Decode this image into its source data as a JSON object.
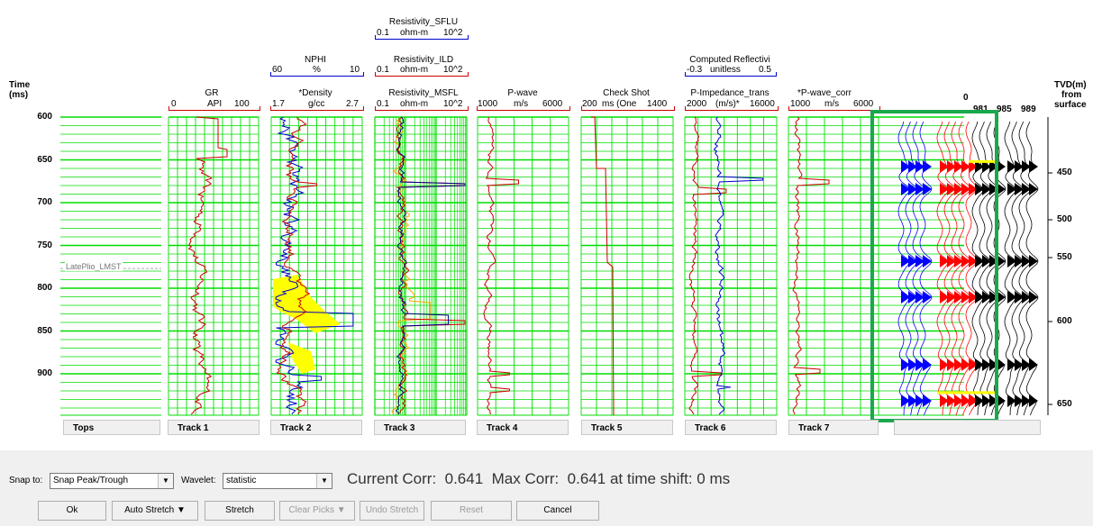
{
  "axis": {
    "time_title": "Time",
    "time_unit": "(ms)",
    "time_ticks": [
      "600",
      "650",
      "700",
      "750",
      "800",
      "850",
      "900"
    ],
    "tvd_title": "TVD(m)",
    "tvd_from": "from",
    "tvd_surface": "surface",
    "tvd_ticks": [
      "450",
      "500",
      "550",
      "600",
      "650"
    ]
  },
  "headers": {
    "gr": {
      "name": "GR",
      "unit": "API",
      "min": "0",
      "max": "100",
      "color": "#cc0000"
    },
    "nphi": {
      "name": "NPHI",
      "unit": "%",
      "min": "60",
      "max": "10",
      "color": "#0000cc"
    },
    "density": {
      "name": "*Density",
      "unit": "g/cc",
      "min": "1.7",
      "max": "2.7",
      "color": "#cc0000"
    },
    "sflu": {
      "name": "Resistivity_SFLU",
      "unit": "ohm-m",
      "min": "0.1",
      "max": "10^2",
      "color": "#0000cc"
    },
    "ild": {
      "name": "Resistivity_ILD",
      "unit": "ohm-m",
      "min": "0.1",
      "max": "10^2",
      "color": "#cc0000"
    },
    "msfl": {
      "name": "Resistivity_MSFL",
      "unit": "ohm-m",
      "min": "0.1",
      "max": "10^2",
      "color": "#cc0000"
    },
    "pwave": {
      "name": "P-wave",
      "unit": "m/s",
      "min": "1000",
      "max": "6000",
      "color": "#cc0000"
    },
    "checkshot": {
      "name": "Check Shot",
      "unit": "ms (One",
      "min": "200",
      "max": "1400",
      "color": "#cc0000"
    },
    "reflect": {
      "name": "Computed Reflectivi",
      "unit": "unitless",
      "min": "-0.3",
      "max": "0.5",
      "color": "#0000cc"
    },
    "pimp": {
      "name": "P-Impedance_trans",
      "unit": "(m/s)*",
      "min": "2000",
      "max": "16000",
      "color": "#cc0000"
    },
    "pwavecorr": {
      "name": "*P-wave_corr",
      "unit": "m/s",
      "min": "1000",
      "max": "6000",
      "color": "#cc0000"
    },
    "seismic": {
      "zero": "0",
      "trace_labels": [
        "981",
        "985",
        "989"
      ]
    }
  },
  "tops": {
    "marker": "LatePlio_LMST"
  },
  "tracks": [
    "Tops",
    "Track 1",
    "Track 2",
    "Track 3",
    "Track 4",
    "Track 5",
    "Track 6",
    "Track 7"
  ],
  "controls": {
    "snap_label": "Snap to:",
    "snap_value": "Snap Peak/Trough",
    "wavelet_label": "Wavelet:",
    "wavelet_value": "statistic",
    "current_corr": "Current Corr:  0.641  Max Corr:  0.641 at time shift: 0 ms",
    "ok": "Ok",
    "auto_stretch": "Auto Stretch ▼",
    "stretch": "Stretch",
    "clear_picks": "Clear Picks ▼",
    "undo_stretch": "Undo Stretch",
    "reset": "Reset",
    "cancel": "Cancel"
  },
  "colors": {
    "grid": "#00dd00",
    "highlight": "#1aa84c",
    "yellow": "#ffff00",
    "orange": "#ffa500"
  }
}
